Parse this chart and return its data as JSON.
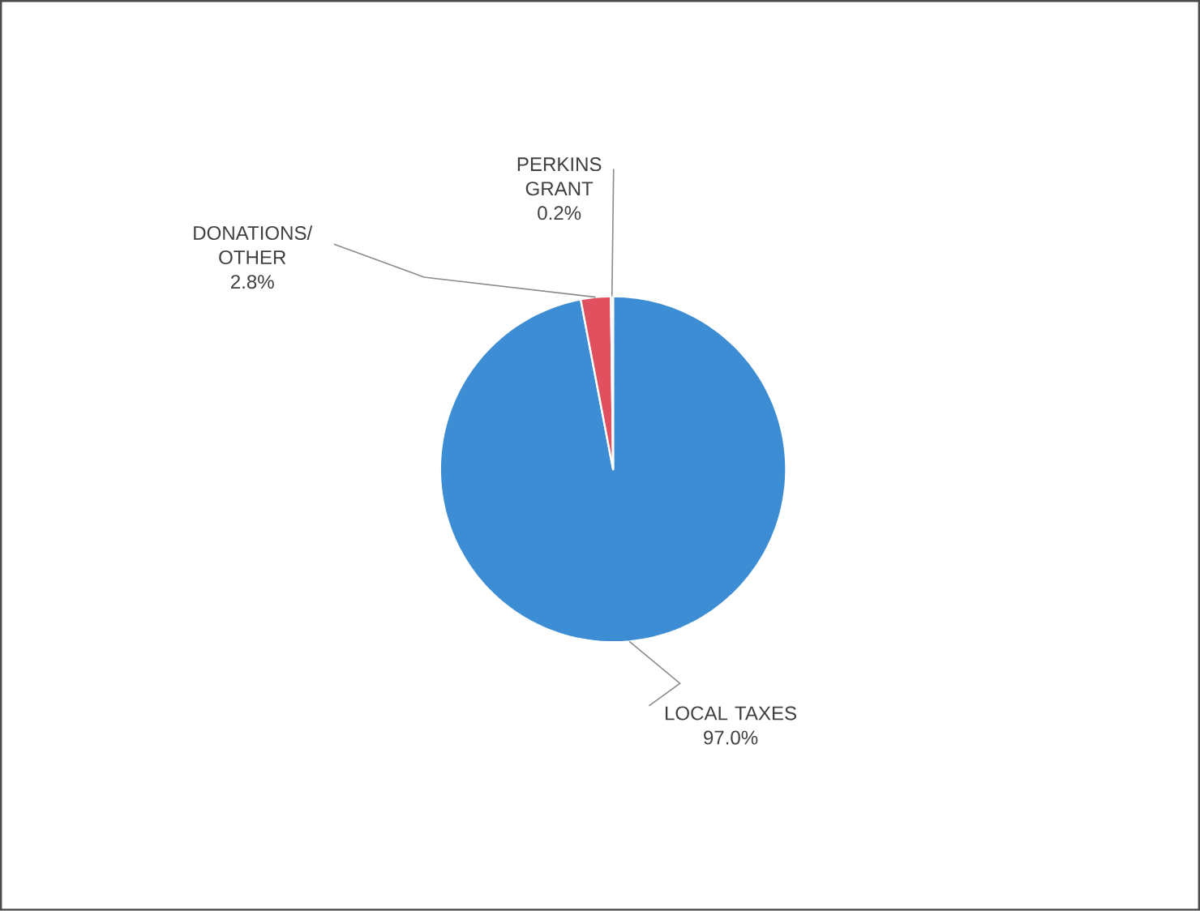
{
  "chart_data": {
    "type": "pie",
    "categories": [
      "LOCAL TAXES",
      "DONATIONS/ OTHER",
      "PERKINS GRANT"
    ],
    "values": [
      97.0,
      2.8,
      0.2
    ],
    "value_labels": [
      "97.0%",
      "2.8%",
      "0.2%"
    ],
    "colors": [
      "#3d8dd4",
      "#e0505e",
      "#8fb65a"
    ]
  }
}
